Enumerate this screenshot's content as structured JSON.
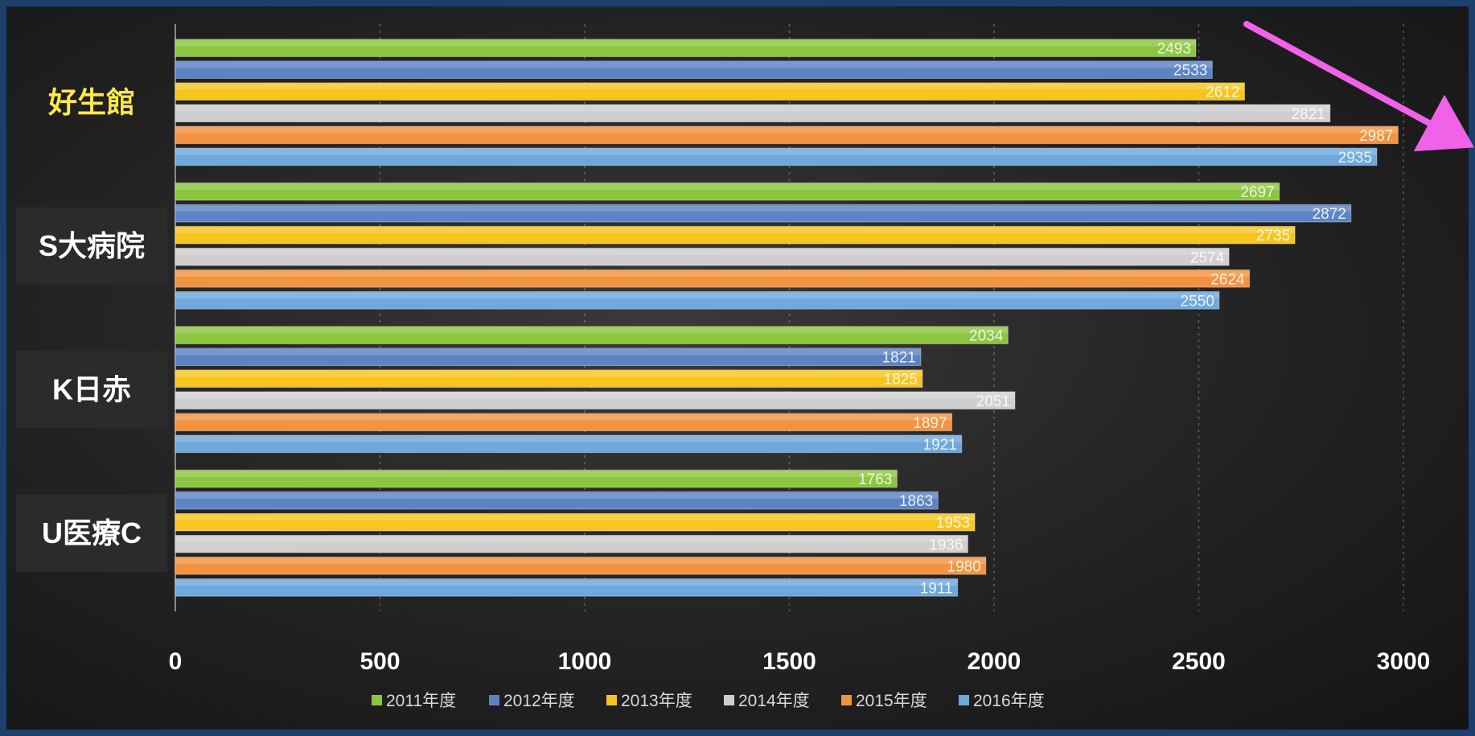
{
  "chart_data": {
    "type": "bar",
    "orientation": "horizontal",
    "categories": [
      "好生館",
      "S大病院",
      "K日赤",
      "U医療C"
    ],
    "highlight_category": "好生館",
    "series": [
      {
        "name": "2011年度",
        "color": "#8cc63f",
        "values": [
          2493,
          2697,
          2034,
          1763
        ]
      },
      {
        "name": "2012年度",
        "color": "#5b84c4",
        "values": [
          2533,
          2872,
          1821,
          1863
        ]
      },
      {
        "name": "2013年度",
        "color": "#f7c51e",
        "values": [
          2612,
          2735,
          1825,
          1953
        ]
      },
      {
        "name": "2014年度",
        "color": "#cfcfcf",
        "values": [
          2821,
          2574,
          2051,
          1936
        ]
      },
      {
        "name": "2015年度",
        "color": "#f29340",
        "values": [
          2987,
          2624,
          1897,
          1980
        ]
      },
      {
        "name": "2016年度",
        "color": "#6ea8dc",
        "values": [
          2935,
          2550,
          1921,
          1911
        ]
      }
    ],
    "xlim": [
      0,
      3000
    ],
    "xticks": [
      "0",
      "500",
      "1000",
      "1500",
      "2000",
      "2500",
      "3000"
    ],
    "grid": true,
    "legend_position": "bottom",
    "annotation": "arrow-up-trend",
    "annotation_color": "#f062e8"
  }
}
